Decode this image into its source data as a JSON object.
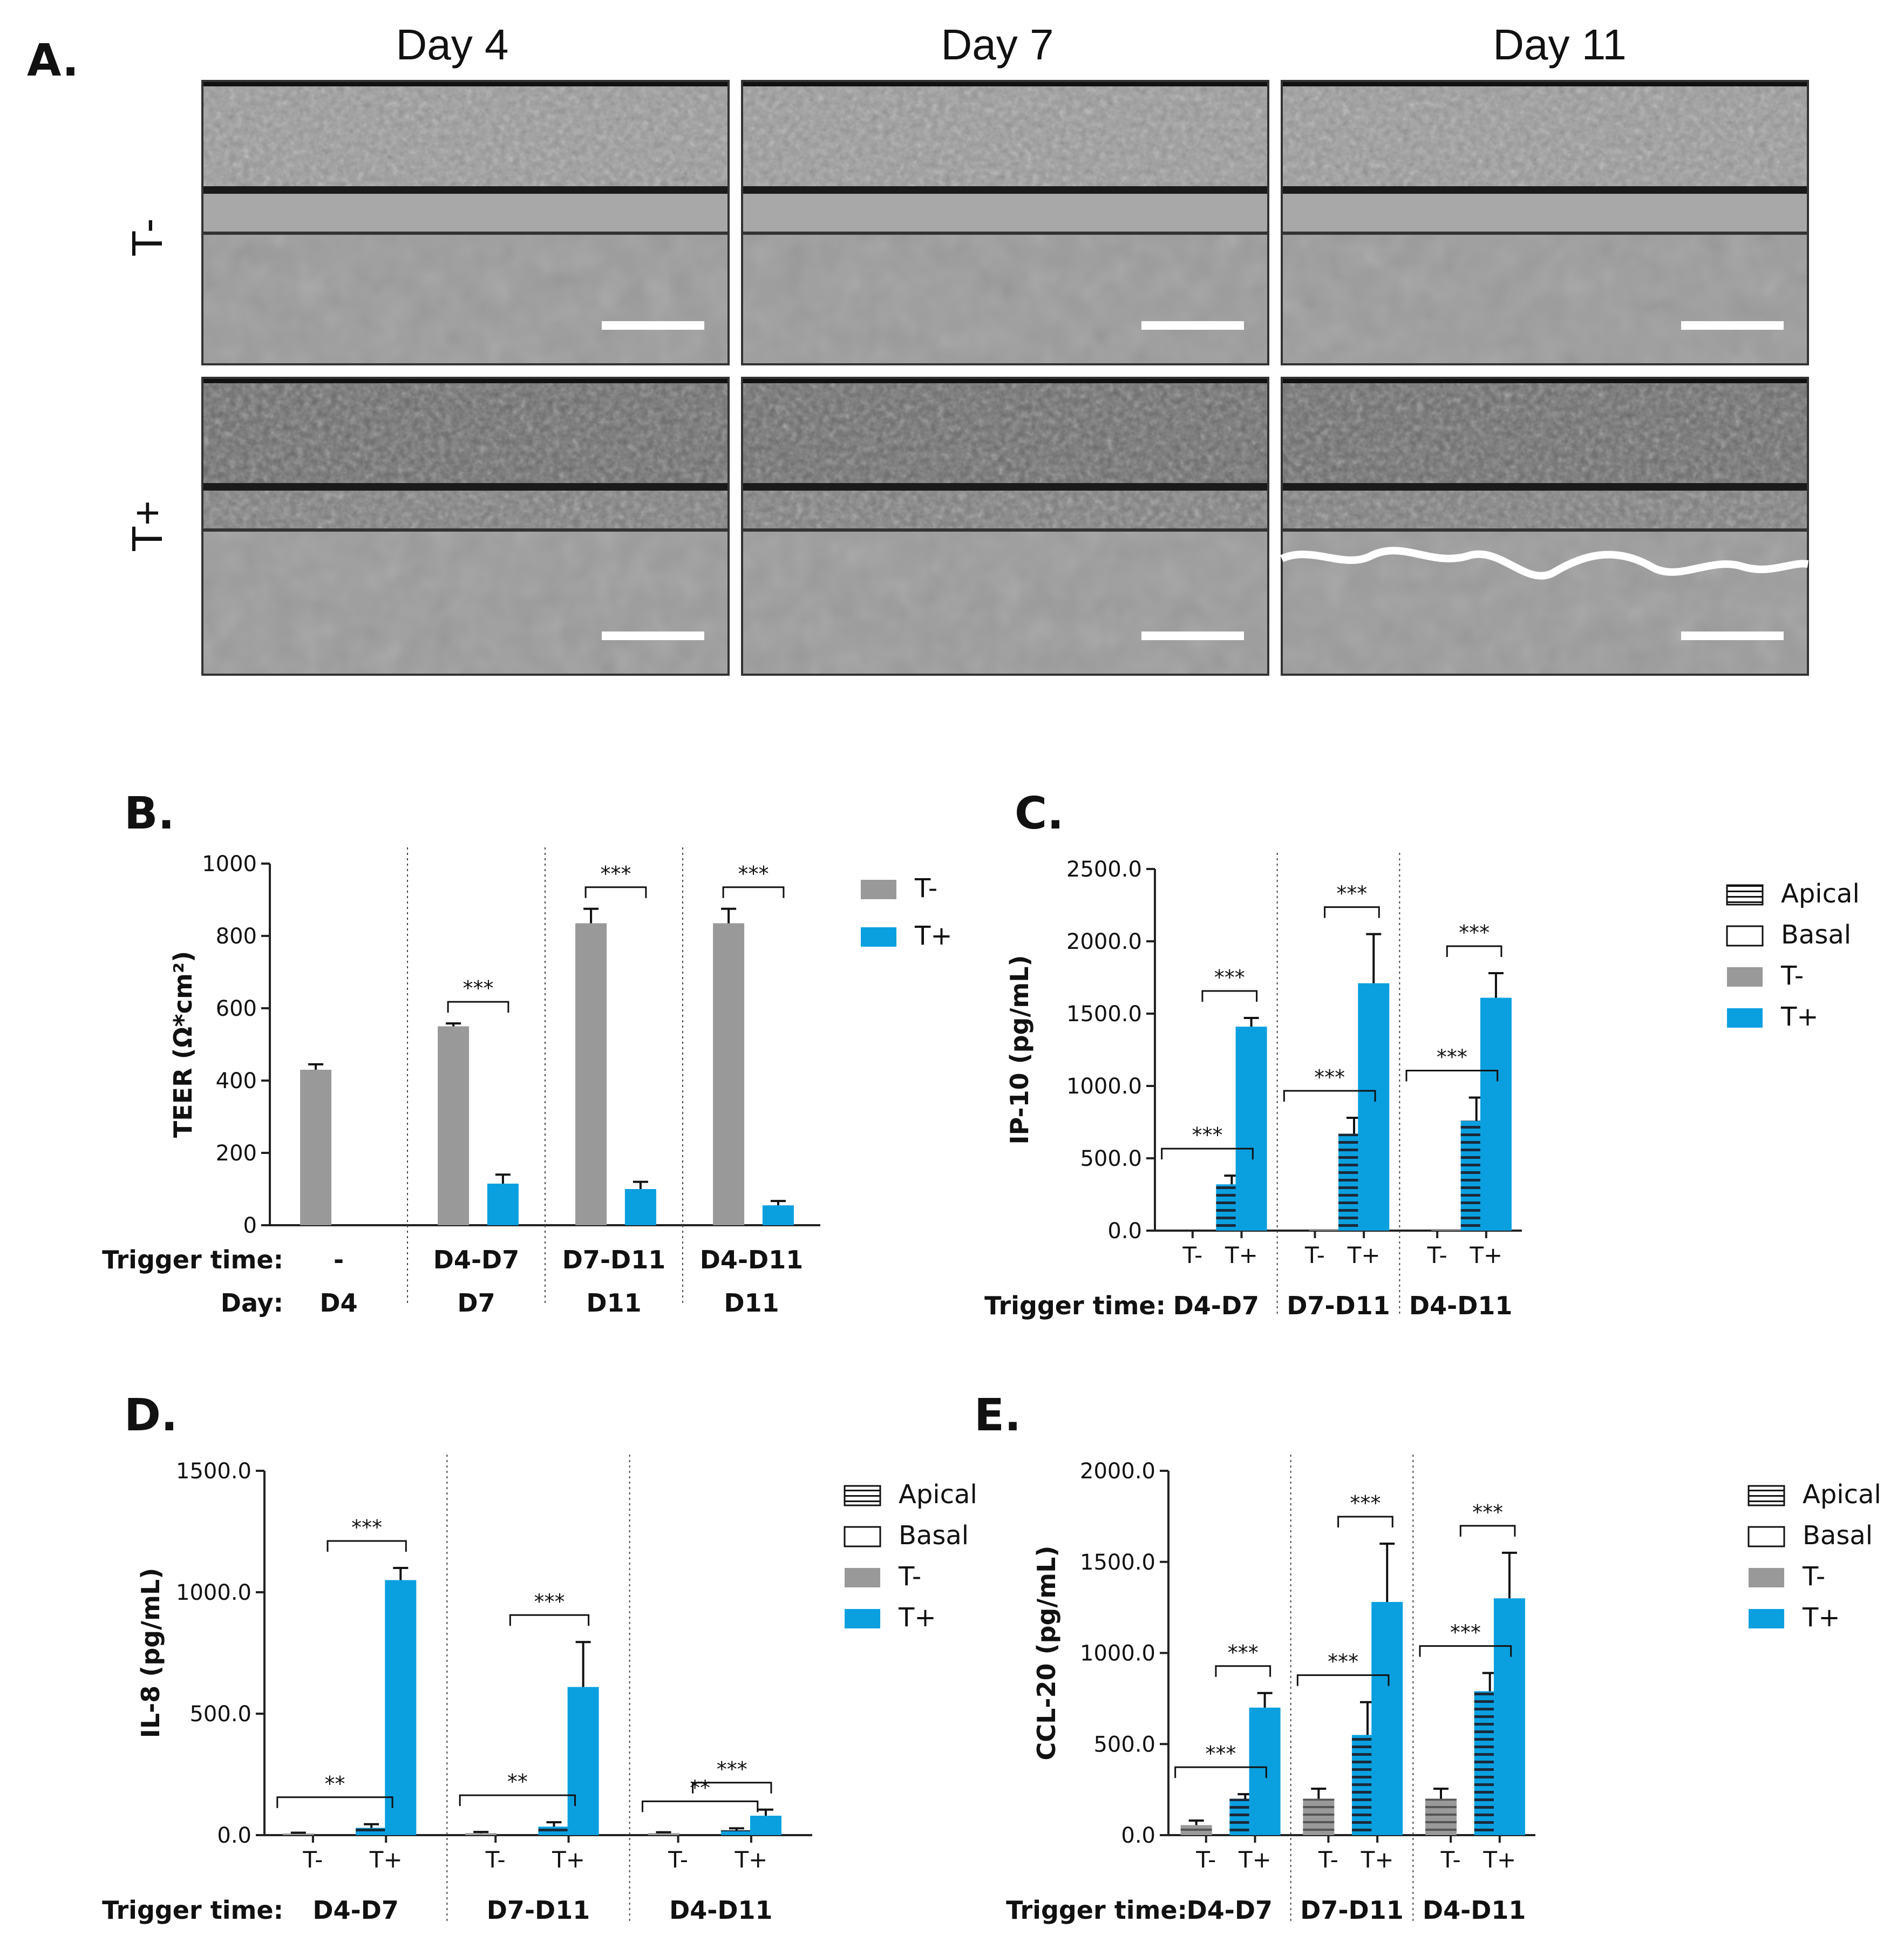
{
  "panel_a": {
    "letter": "A.",
    "day_headings": [
      "Day 4",
      "Day 7",
      "Day 11"
    ],
    "row_labels": [
      "T-",
      "T+"
    ]
  },
  "colors": {
    "t_minus": "#999999",
    "t_plus": "#0aa0e0",
    "axis": "#222222"
  },
  "chart_data": [
    {
      "panel": "B.",
      "type": "bar",
      "ylabel": "TEER (Ω*cm²)",
      "ylim": [
        0,
        1000
      ],
      "yticks": [
        "0",
        "200",
        "400",
        "600",
        "800",
        "1000"
      ],
      "row_labels": [
        "Trigger time:",
        "Day:"
      ],
      "groups": [
        {
          "trigger": "-",
          "day": "D4",
          "bars": [
            {
              "series": "T-",
              "value": 430,
              "err": 15
            }
          ]
        },
        {
          "trigger": "D4-D7",
          "day": "D7",
          "bars": [
            {
              "series": "T-",
              "value": 550,
              "err": 8
            },
            {
              "series": "T+",
              "value": 115,
              "err": 25
            }
          ],
          "sig": "***"
        },
        {
          "trigger": "D7-D11",
          "day": "D11",
          "bars": [
            {
              "series": "T-",
              "value": 835,
              "err": 40
            },
            {
              "series": "T+",
              "value": 100,
              "err": 20
            }
          ],
          "sig": "***"
        },
        {
          "trigger": "D4-D11",
          "day": "D11",
          "bars": [
            {
              "series": "T-",
              "value": 835,
              "err": 40
            },
            {
              "series": "T+",
              "value": 55,
              "err": 12
            }
          ],
          "sig": "***"
        }
      ],
      "legend": [
        "T-",
        "T+"
      ]
    },
    {
      "panel": "C.",
      "type": "bar",
      "ylabel": "IP-10 (pg/mL)",
      "ylim": [
        0,
        2500
      ],
      "yticks": [
        "0.0",
        "500.0",
        "1000.0",
        "1500.0",
        "2000.0",
        "2500.0"
      ],
      "row_label": "Trigger time:",
      "groups": [
        {
          "trigger": "D4-D7",
          "bars": [
            {
              "series": "T-",
              "side": "Apical",
              "value": 0,
              "err": 0
            },
            {
              "series": "T-",
              "side": "Basal",
              "value": 0,
              "err": 0
            },
            {
              "series": "T+",
              "side": "Apical",
              "value": 320,
              "err": 60
            },
            {
              "series": "T+",
              "side": "Basal",
              "value": 1410,
              "err": 60
            }
          ],
          "sig": [
            "***",
            "***"
          ]
        },
        {
          "trigger": "D7-D11",
          "bars": [
            {
              "series": "T-",
              "side": "Apical",
              "value": 0,
              "err": 0
            },
            {
              "series": "T-",
              "side": "Basal",
              "value": 8,
              "err": 0
            },
            {
              "series": "T+",
              "side": "Apical",
              "value": 670,
              "err": 110
            },
            {
              "series": "T+",
              "side": "Basal",
              "value": 1710,
              "err": 340
            }
          ],
          "sig": [
            "***",
            "***"
          ]
        },
        {
          "trigger": "D4-D11",
          "bars": [
            {
              "series": "T-",
              "side": "Apical",
              "value": 0,
              "err": 0
            },
            {
              "series": "T-",
              "side": "Basal",
              "value": 8,
              "err": 0
            },
            {
              "series": "T+",
              "side": "Apical",
              "value": 760,
              "err": 160
            },
            {
              "series": "T+",
              "side": "Basal",
              "value": 1610,
              "err": 170
            }
          ],
          "sig": [
            "***",
            "***"
          ]
        }
      ],
      "xticks": [
        "T-",
        "T+"
      ],
      "legend": [
        "Apical",
        "Basal",
        "T-",
        "T+"
      ]
    },
    {
      "panel": "D.",
      "type": "bar",
      "ylabel": "IL-8 (pg/mL)",
      "ylim": [
        0,
        1500
      ],
      "yticks": [
        "0.0",
        "500.0",
        "1000.0",
        "1500.0"
      ],
      "row_label": "Trigger time:",
      "groups": [
        {
          "trigger": "D4-D7",
          "bars": [
            {
              "series": "T-",
              "side": "Apical",
              "value": 6,
              "err": 4
            },
            {
              "series": "T-",
              "side": "Basal",
              "value": 0,
              "err": 0
            },
            {
              "series": "T+",
              "side": "Apical",
              "value": 30,
              "err": 15
            },
            {
              "series": "T+",
              "side": "Basal",
              "value": 1050,
              "err": 50
            }
          ],
          "sig": [
            "**",
            "***"
          ]
        },
        {
          "trigger": "D7-D11",
          "bars": [
            {
              "series": "T-",
              "side": "Apical",
              "value": 8,
              "err": 5
            },
            {
              "series": "T-",
              "side": "Basal",
              "value": 0,
              "err": 0
            },
            {
              "series": "T+",
              "side": "Apical",
              "value": 35,
              "err": 18
            },
            {
              "series": "T+",
              "side": "Basal",
              "value": 610,
              "err": 185
            }
          ],
          "sig": [
            "**",
            "***"
          ]
        },
        {
          "trigger": "D4-D11",
          "bars": [
            {
              "series": "T-",
              "side": "Apical",
              "value": 8,
              "err": 4
            },
            {
              "series": "T-",
              "side": "Basal",
              "value": 0,
              "err": 0
            },
            {
              "series": "T+",
              "side": "Apical",
              "value": 20,
              "err": 8
            },
            {
              "series": "T+",
              "side": "Basal",
              "value": 80,
              "err": 25
            }
          ],
          "sig": [
            "**",
            "***"
          ]
        }
      ],
      "xticks": [
        "T-",
        "T+"
      ],
      "legend": [
        "Apical",
        "Basal",
        "T-",
        "T+"
      ]
    },
    {
      "panel": "E.",
      "type": "bar",
      "ylabel": "CCL-20 (pg/mL)",
      "ylim": [
        0,
        2000
      ],
      "yticks": [
        "0.0",
        "500.0",
        "1000.0",
        "1500.0",
        "2000.0"
      ],
      "row_label": "Trigger time:",
      "groups": [
        {
          "trigger": "D4-D7",
          "bars": [
            {
              "series": "T-",
              "side": "Apical",
              "value": 55,
              "err": 25
            },
            {
              "series": "T-",
              "side": "Basal",
              "value": 0,
              "err": 0
            },
            {
              "series": "T+",
              "side": "Apical",
              "value": 200,
              "err": 25
            },
            {
              "series": "T+",
              "side": "Basal",
              "value": 700,
              "err": 80
            }
          ],
          "sig": [
            "***",
            "***"
          ]
        },
        {
          "trigger": "D7-D11",
          "bars": [
            {
              "series": "T-",
              "side": "Apical",
              "value": 200,
              "err": 55
            },
            {
              "series": "T-",
              "side": "Basal",
              "value": 0,
              "err": 0
            },
            {
              "series": "T+",
              "side": "Apical",
              "value": 550,
              "err": 180
            },
            {
              "series": "T+",
              "side": "Basal",
              "value": 1280,
              "err": 320
            }
          ],
          "sig": [
            "***",
            "***"
          ]
        },
        {
          "trigger": "D4-D11",
          "bars": [
            {
              "series": "T-",
              "side": "Apical",
              "value": 200,
              "err": 55
            },
            {
              "series": "T-",
              "side": "Basal",
              "value": 0,
              "err": 0
            },
            {
              "series": "T+",
              "side": "Apical",
              "value": 790,
              "err": 100
            },
            {
              "series": "T+",
              "side": "Basal",
              "value": 1300,
              "err": 250
            }
          ],
          "sig": [
            "***",
            "***"
          ]
        }
      ],
      "xticks": [
        "T-",
        "T+"
      ],
      "legend": [
        "Apical",
        "Basal",
        "T-",
        "T+"
      ]
    }
  ]
}
